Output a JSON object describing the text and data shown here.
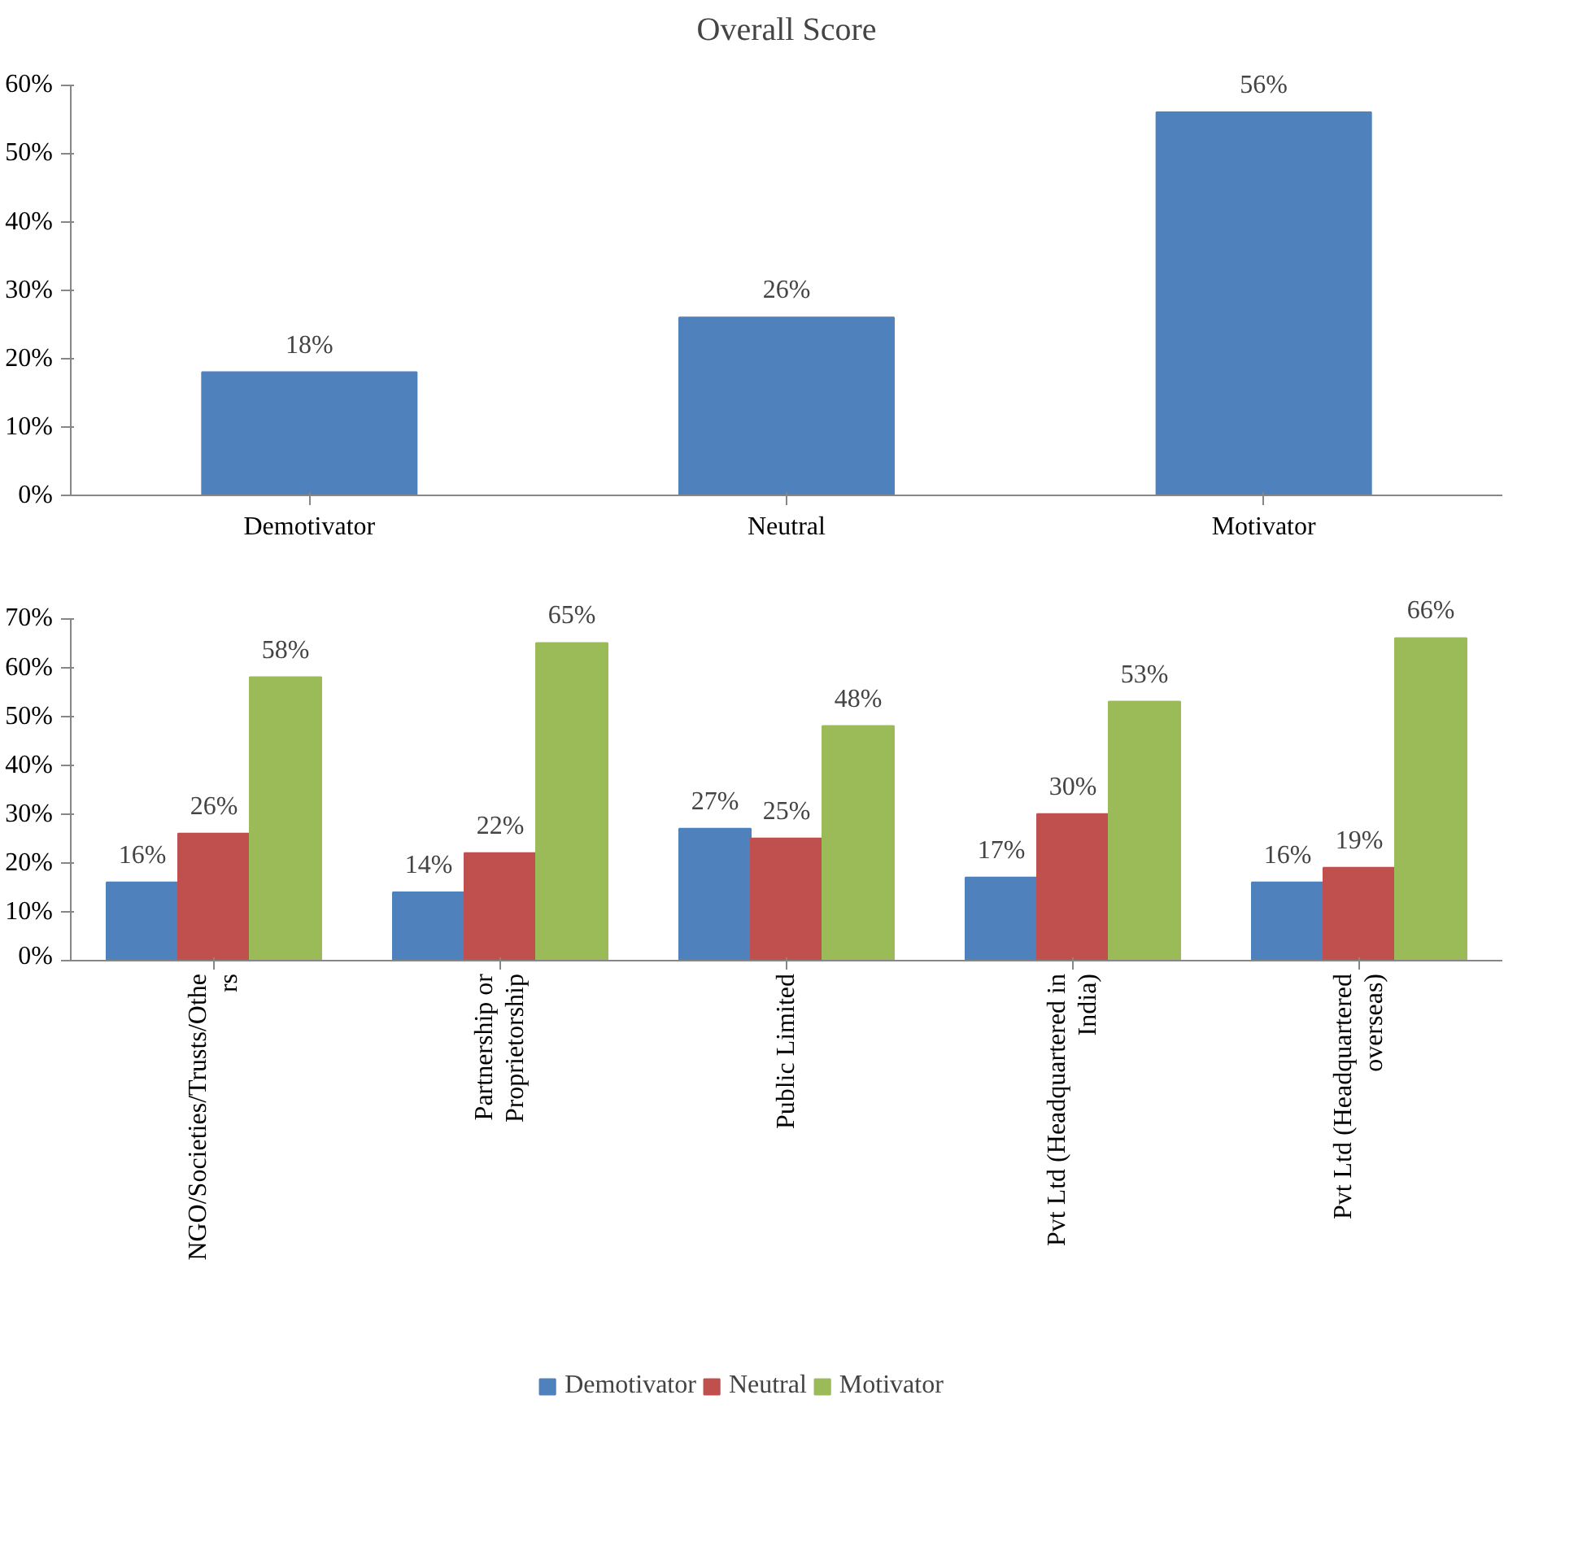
{
  "chart_data": [
    {
      "type": "bar",
      "title": "Overall Score",
      "categories": [
        "Demotivator",
        "Neutral",
        "Motivator"
      ],
      "values": [
        18,
        26,
        56
      ],
      "color": "#4f81bd",
      "value_labels": [
        "18%",
        "26%",
        "56%"
      ],
      "ylim": [
        0,
        60
      ],
      "yticks": [
        {
          "value": 0,
          "label": "0%"
        },
        {
          "value": 10,
          "label": "10%"
        },
        {
          "value": 20,
          "label": "20%"
        },
        {
          "value": 30,
          "label": "30%"
        },
        {
          "value": 40,
          "label": "40%"
        },
        {
          "value": 50,
          "label": "50%"
        },
        {
          "value": 60,
          "label": "60%"
        }
      ],
      "grid": false
    },
    {
      "type": "bar",
      "categories": [
        "NGO/Societies/Trusts/Others",
        "Partnership or Proprietorship",
        "Public Limited",
        "Pvt Ltd (Headquartered in India)",
        "Pvt Ltd (Headquartered overseas)"
      ],
      "series": [
        {
          "name": "Demotivator",
          "color": "#4f81bd",
          "values": [
            16,
            14,
            27,
            17,
            16
          ],
          "value_labels": [
            "16%",
            "14%",
            "27%",
            "17%",
            "16%"
          ]
        },
        {
          "name": "Neutral",
          "color": "#c0504d",
          "values": [
            26,
            22,
            25,
            30,
            19
          ],
          "value_labels": [
            "26%",
            "22%",
            "25%",
            "30%",
            "19%"
          ]
        },
        {
          "name": "Motivator",
          "color": "#9bbb59",
          "values": [
            58,
            65,
            48,
            53,
            66
          ],
          "value_labels": [
            "58%",
            "65%",
            "48%",
            "53%",
            "66%"
          ]
        }
      ],
      "ylim": [
        0,
        70
      ],
      "yticks": [
        {
          "value": 0,
          "label": "0%"
        },
        {
          "value": 10,
          "label": "10%"
        },
        {
          "value": 20,
          "label": "20%"
        },
        {
          "value": 30,
          "label": "30%"
        },
        {
          "value": 40,
          "label": "40%"
        },
        {
          "value": 50,
          "label": "50%"
        },
        {
          "value": 60,
          "label": "60%"
        },
        {
          "value": 70,
          "label": "70%"
        }
      ],
      "grid": false,
      "legend": "bottom"
    }
  ]
}
